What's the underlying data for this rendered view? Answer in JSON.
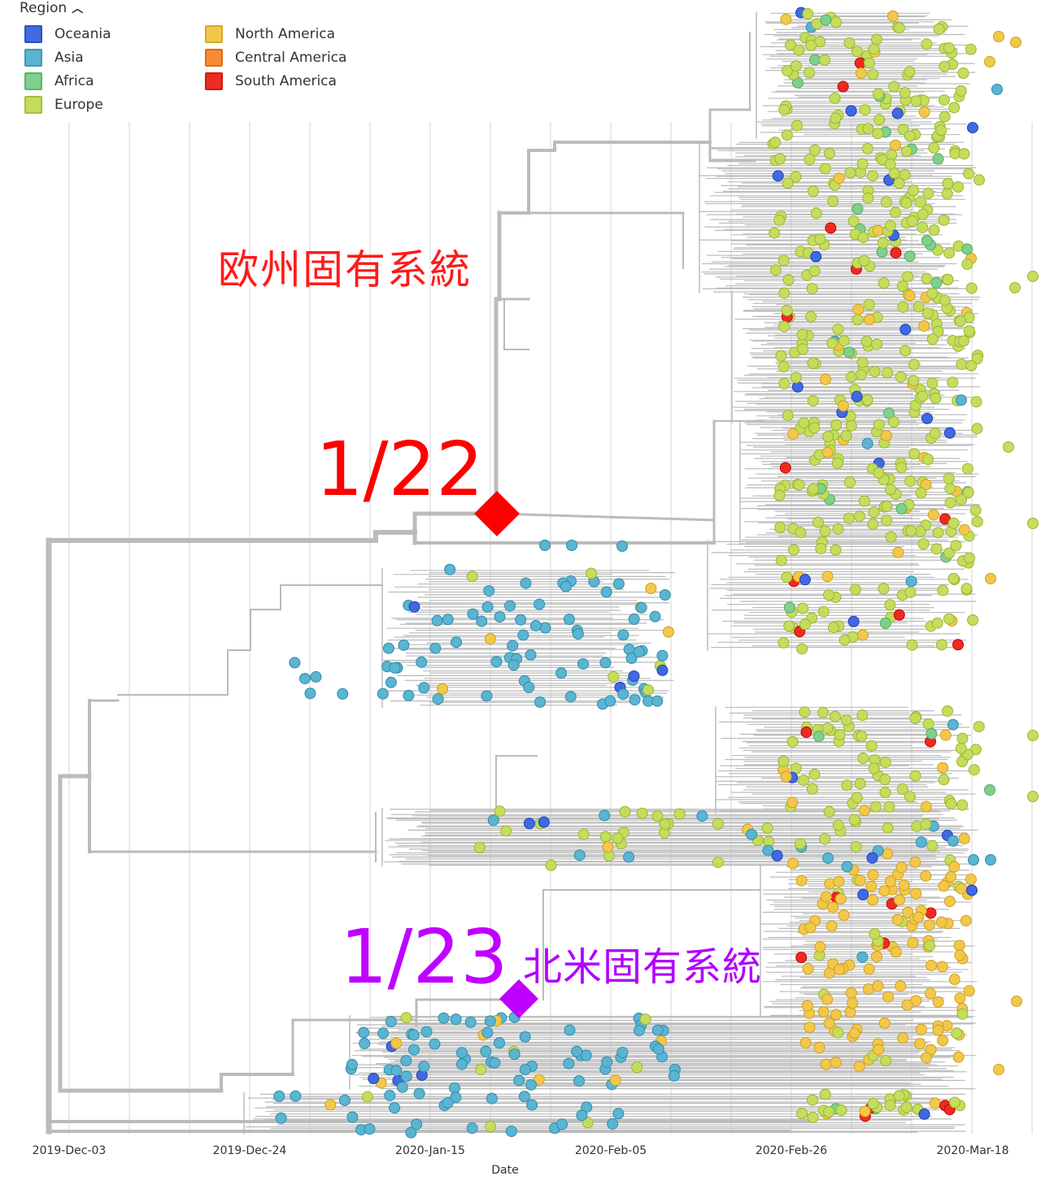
{
  "legend": {
    "title": "Region",
    "items": [
      {
        "label": "Oceania",
        "color": "#4169e1"
      },
      {
        "label": "Asia",
        "color": "#5ab4d2"
      },
      {
        "label": "Africa",
        "color": "#7ed08b"
      },
      {
        "label": "Europe",
        "color": "#c4dd5c"
      },
      {
        "label": "North America",
        "color": "#f3c84a"
      },
      {
        "label": "Central America",
        "color": "#f98c33"
      },
      {
        "label": "South America",
        "color": "#ee2b20"
      }
    ]
  },
  "axis": {
    "title": "Date",
    "ticks": [
      "2019-Dec-03",
      "2019-Dec-24",
      "2020-Jan-15",
      "2020-Feb-05",
      "2020-Feb-26",
      "2020-Mar-18"
    ]
  },
  "annotations": {
    "europe_date": "1/22",
    "europe_label": "欧州固有系統",
    "na_date": "1/23",
    "na_label": "北米固有系統"
  },
  "colors": {
    "branch": "#bbbbbb",
    "gridline": "#e3e3e3",
    "europe_marker": "#ff0000",
    "na_marker": "#bf00ff"
  }
}
